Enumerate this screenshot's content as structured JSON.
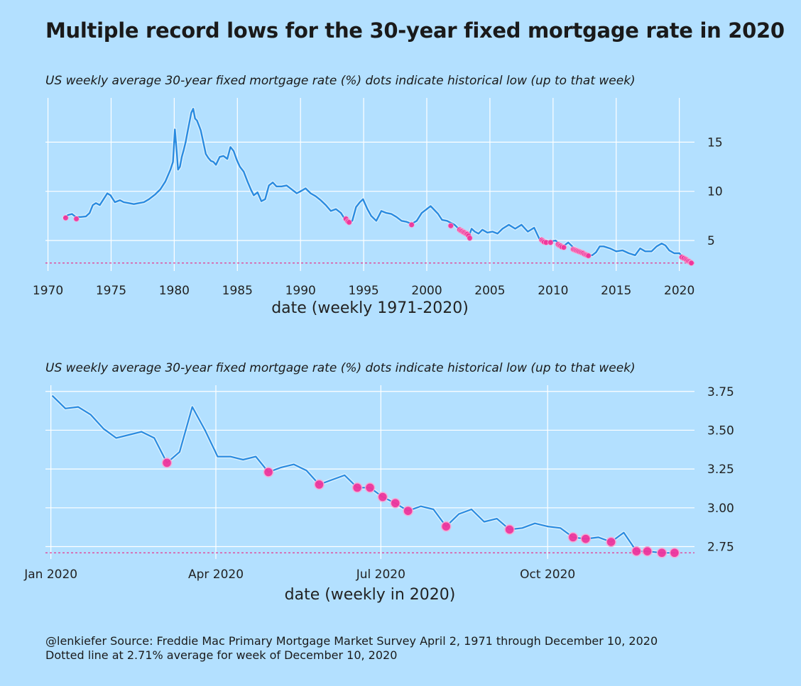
{
  "title": "Multiple record lows for the 30-year fixed mortgage rate in 2020",
  "caption_line1": "@lenkiefer Source: Freddie Mac Primary Mortgage Market Survey April 2, 1971 through December 10, 2020",
  "caption_line2": "Dotted line at 2.71% average for week of December 10, 2020",
  "colors": {
    "background": "#b3e0ff",
    "line": "#2a8be0",
    "dots": "#f0359c",
    "dotted_line": "#e8358f"
  },
  "chart_data": [
    {
      "type": "line",
      "subtitle": "US weekly average 30-year fixed mortgage rate (%) dots indicate historical low (up to that week)",
      "xlabel": "date (weekly 1971-2020)",
      "ylabel": "",
      "xlim": [
        1969.8,
        2021.2
      ],
      "ylim": [
        1.9,
        19.5
      ],
      "x_ticks": [
        1970,
        1975,
        1980,
        1985,
        1990,
        1995,
        2000,
        2005,
        2010,
        2015,
        2020
      ],
      "y_ticks": [
        5,
        10,
        15
      ],
      "reference_line": 2.71,
      "series": [
        {
          "x": [
            1971.25,
            1971.6,
            1971.9,
            1972.2,
            1972.6,
            1973.0,
            1973.3,
            1973.55,
            1973.8,
            1974.1,
            1974.4,
            1974.7,
            1974.95,
            1975.3,
            1975.7,
            1976.0,
            1976.4,
            1976.8,
            1977.2,
            1977.6,
            1978.0,
            1978.5,
            1978.9,
            1979.3,
            1979.7,
            1979.9,
            1980.05,
            1980.2,
            1980.3,
            1980.45,
            1980.6,
            1980.75,
            1980.9,
            1981.05,
            1981.2,
            1981.35,
            1981.5,
            1981.65,
            1981.8,
            1981.95,
            1982.1,
            1982.3,
            1982.5,
            1982.7,
            1982.9,
            1983.1,
            1983.3,
            1983.6,
            1983.9,
            1984.2,
            1984.45,
            1984.7,
            1984.95,
            1985.2,
            1985.5,
            1985.8,
            1986.1,
            1986.3,
            1986.6,
            1986.9,
            1987.2,
            1987.5,
            1987.8,
            1988.1,
            1988.5,
            1988.9,
            1989.3,
            1989.7,
            1990.0,
            1990.4,
            1990.8,
            1991.2,
            1991.6,
            1992.0,
            1992.4,
            1992.8,
            1993.2,
            1993.5,
            1993.8,
            1994.1,
            1994.4,
            1994.7,
            1994.95,
            1995.3,
            1995.6,
            1996.0,
            1996.4,
            1996.8,
            1997.2,
            1997.6,
            1998.0,
            1998.4,
            1998.8,
            1999.2,
            1999.6,
            2000.0,
            2000.3,
            2000.6,
            2000.9,
            2001.2,
            2001.6,
            2001.9,
            2002.2,
            2002.6,
            2003.0,
            2003.3,
            2003.55,
            2003.8,
            2004.1,
            2004.4,
            2004.8,
            2005.2,
            2005.6,
            2006.0,
            2006.5,
            2007.0,
            2007.5,
            2008.0,
            2008.5,
            2008.9,
            2009.1,
            2009.4,
            2009.8,
            2010.2,
            2010.6,
            2010.9,
            2011.2,
            2011.6,
            2012.0,
            2012.4,
            2012.8,
            2013.1,
            2013.4,
            2013.7,
            2014.0,
            2014.5,
            2015.0,
            2015.5,
            2016.0,
            2016.5,
            2016.9,
            2017.3,
            2017.8,
            2018.2,
            2018.6,
            2018.9,
            2019.2,
            2019.6,
            2020.0,
            2020.3,
            2020.6,
            2020.95
          ],
          "y": [
            7.3,
            7.6,
            7.7,
            7.4,
            7.4,
            7.45,
            7.8,
            8.6,
            8.8,
            8.6,
            9.2,
            9.8,
            9.6,
            8.9,
            9.1,
            8.9,
            8.8,
            8.7,
            8.8,
            8.9,
            9.2,
            9.7,
            10.2,
            11.0,
            12.2,
            13.0,
            16.3,
            14.0,
            12.2,
            12.5,
            13.5,
            14.2,
            15.0,
            16.0,
            17.0,
            18.0,
            18.4,
            17.4,
            17.2,
            16.7,
            16.2,
            15.0,
            13.8,
            13.4,
            13.1,
            13.0,
            12.7,
            13.5,
            13.6,
            13.3,
            14.5,
            14.1,
            13.2,
            12.5,
            12.0,
            11.0,
            10.1,
            9.6,
            9.9,
            9.0,
            9.2,
            10.6,
            10.9,
            10.5,
            10.5,
            10.6,
            10.2,
            9.8,
            10.0,
            10.3,
            9.8,
            9.5,
            9.1,
            8.6,
            8.0,
            8.2,
            7.8,
            7.2,
            6.9,
            7.0,
            8.4,
            8.9,
            9.2,
            8.2,
            7.5,
            7.0,
            8.0,
            7.8,
            7.7,
            7.4,
            7.0,
            6.9,
            6.7,
            7.0,
            7.8,
            8.2,
            8.5,
            8.1,
            7.7,
            7.1,
            7.0,
            6.8,
            6.6,
            6.1,
            5.8,
            5.3,
            6.2,
            5.9,
            5.7,
            6.1,
            5.8,
            5.9,
            5.7,
            6.2,
            6.6,
            6.2,
            6.6,
            5.9,
            6.3,
            5.2,
            5.0,
            5.0,
            4.9,
            5.0,
            4.5,
            4.5,
            4.8,
            4.3,
            4.0,
            3.7,
            3.5,
            3.5,
            3.8,
            4.4,
            4.4,
            4.2,
            3.9,
            4.0,
            3.7,
            3.5,
            4.2,
            3.9,
            3.9,
            4.4,
            4.7,
            4.5,
            4.0,
            3.7,
            3.7,
            3.3,
            3.1,
            2.71
          ]
        }
      ],
      "record_lows": {
        "x": [
          1971.4,
          1972.25,
          1993.6,
          1993.75,
          1993.85,
          1998.8,
          2001.9,
          2002.6,
          2002.7,
          2002.8,
          2002.9,
          2003.0,
          2003.1,
          2003.2,
          2003.3,
          2003.4,
          2009.1,
          2009.2,
          2009.3,
          2009.45,
          2009.8,
          2010.4,
          2010.5,
          2010.6,
          2010.7,
          2010.85,
          2011.6,
          2011.7,
          2011.8,
          2011.9,
          2012.0,
          2012.1,
          2012.2,
          2012.3,
          2012.4,
          2012.5,
          2012.6,
          2012.7,
          2012.8,
          2020.2,
          2020.35,
          2020.5,
          2020.6,
          2020.7,
          2020.8,
          2020.9,
          2020.95
        ],
        "y": [
          7.3,
          7.2,
          7.2,
          6.95,
          6.85,
          6.6,
          6.5,
          6.1,
          6.0,
          5.95,
          5.85,
          5.8,
          5.7,
          5.65,
          5.5,
          5.25,
          5.05,
          4.95,
          4.85,
          4.8,
          4.8,
          4.6,
          4.5,
          4.45,
          4.35,
          4.3,
          4.1,
          4.05,
          4.0,
          3.95,
          3.9,
          3.85,
          3.8,
          3.75,
          3.7,
          3.6,
          3.55,
          3.5,
          3.45,
          3.3,
          3.2,
          3.1,
          3.0,
          2.9,
          2.85,
          2.75,
          2.71
        ]
      }
    },
    {
      "type": "line",
      "subtitle": "US weekly average 30-year fixed mortgage rate (%) dots indicate historical low (up to that week)",
      "xlabel": "date (weekly in 2020)",
      "ylabel": "",
      "x_unit": "ISO date",
      "xlim": [
        "2019-12-29",
        "2020-12-21"
      ],
      "ylim": [
        2.67,
        3.79
      ],
      "x_ticks": [
        {
          "date": "2020-01-01",
          "label": "Jan 2020"
        },
        {
          "date": "2020-04-01",
          "label": "Apr 2020"
        },
        {
          "date": "2020-07-01",
          "label": "Jul 2020"
        },
        {
          "date": "2020-10-01",
          "label": "Oct 2020"
        }
      ],
      "y_ticks": [
        {
          "value": 2.75,
          "label": "2.75"
        },
        {
          "value": 3.0,
          "label": "3.00"
        },
        {
          "value": 3.25,
          "label": "3.25"
        },
        {
          "value": 3.5,
          "label": "3.50"
        },
        {
          "value": 3.75,
          "label": "3.75"
        }
      ],
      "reference_line": 2.71,
      "series": [
        {
          "x": [
            "2020-01-02",
            "2020-01-09",
            "2020-01-16",
            "2020-01-23",
            "2020-01-30",
            "2020-02-06",
            "2020-02-13",
            "2020-02-20",
            "2020-02-27",
            "2020-03-05",
            "2020-03-12",
            "2020-03-19",
            "2020-03-26",
            "2020-04-02",
            "2020-04-09",
            "2020-04-16",
            "2020-04-23",
            "2020-04-30",
            "2020-05-07",
            "2020-05-14",
            "2020-05-21",
            "2020-05-28",
            "2020-06-04",
            "2020-06-11",
            "2020-06-18",
            "2020-06-25",
            "2020-07-02",
            "2020-07-09",
            "2020-07-16",
            "2020-07-23",
            "2020-07-30",
            "2020-08-06",
            "2020-08-13",
            "2020-08-20",
            "2020-08-27",
            "2020-09-03",
            "2020-09-10",
            "2020-09-17",
            "2020-09-24",
            "2020-10-01",
            "2020-10-08",
            "2020-10-15",
            "2020-10-22",
            "2020-10-29",
            "2020-11-05",
            "2020-11-12",
            "2020-11-19",
            "2020-11-25",
            "2020-12-03",
            "2020-12-10"
          ],
          "y": [
            3.72,
            3.64,
            3.65,
            3.6,
            3.51,
            3.45,
            3.47,
            3.49,
            3.45,
            3.29,
            3.36,
            3.65,
            3.5,
            3.33,
            3.33,
            3.31,
            3.33,
            3.23,
            3.26,
            3.28,
            3.24,
            3.15,
            3.18,
            3.21,
            3.13,
            3.13,
            3.07,
            3.03,
            2.98,
            3.01,
            2.99,
            2.88,
            2.96,
            2.99,
            2.91,
            2.93,
            2.86,
            2.87,
            2.9,
            2.88,
            2.87,
            2.81,
            2.8,
            2.81,
            2.78,
            2.84,
            2.72,
            2.72,
            2.71,
            2.71
          ]
        }
      ],
      "record_lows": {
        "x": [
          "2020-03-05",
          "2020-04-30",
          "2020-05-28",
          "2020-06-18",
          "2020-06-25",
          "2020-07-02",
          "2020-07-09",
          "2020-07-16",
          "2020-08-06",
          "2020-09-10",
          "2020-10-15",
          "2020-10-22",
          "2020-11-05",
          "2020-11-19",
          "2020-11-25",
          "2020-12-03",
          "2020-12-10"
        ],
        "y": [
          3.29,
          3.23,
          3.15,
          3.13,
          3.13,
          3.07,
          3.03,
          2.98,
          2.88,
          2.86,
          2.81,
          2.8,
          2.78,
          2.72,
          2.72,
          2.71,
          2.71
        ]
      }
    }
  ]
}
